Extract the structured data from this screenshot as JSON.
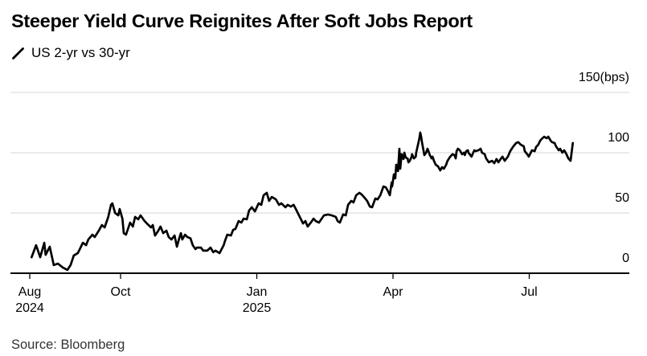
{
  "chart_data": {
    "type": "line",
    "title": "Steeper Yield Curve Reignites After Soft Jobs Report",
    "legend": {
      "label": "US 2-yr vs 30-yr"
    },
    "source": "Source: Bloomberg",
    "colors": {
      "line": "#000000",
      "grid": "#d6d6d6",
      "axis": "#000000",
      "background": "#ffffff",
      "text": "#000000"
    },
    "y_axis": {
      "ticks": [
        0,
        50,
        100,
        150
      ],
      "unit": "(bps)",
      "range": [
        0,
        150
      ],
      "grid": true,
      "side": "right"
    },
    "x_axis": {
      "unit": "months since Aug 2024",
      "ticks": [
        {
          "label": "Aug",
          "year": "2024",
          "t": 0
        },
        {
          "label": "Oct",
          "t": 2
        },
        {
          "label": "Jan",
          "year": "2025",
          "t": 5
        },
        {
          "label": "Apr",
          "t": 8
        },
        {
          "label": "Jul",
          "t": 11
        }
      ]
    },
    "series": [
      {
        "name": "US 2-yr vs 30-yr spread",
        "color": "#000000",
        "value_unit": "bps",
        "points": [
          [
            0.04,
            13.3
          ],
          [
            0.14,
            23.3
          ],
          [
            0.23,
            13.3
          ],
          [
            0.32,
            25.3
          ],
          [
            0.35,
            15.3
          ],
          [
            0.44,
            22
          ],
          [
            0.53,
            6.7
          ],
          [
            0.62,
            8
          ],
          [
            0.73,
            4.7
          ],
          [
            0.83,
            2.7
          ],
          [
            0.9,
            6.7
          ],
          [
            0.97,
            14.7
          ],
          [
            1.06,
            16.7
          ],
          [
            1.17,
            25.3
          ],
          [
            1.24,
            23.3
          ],
          [
            1.29,
            28
          ],
          [
            1.38,
            32
          ],
          [
            1.43,
            30
          ],
          [
            1.52,
            35.3
          ],
          [
            1.59,
            40
          ],
          [
            1.65,
            38
          ],
          [
            1.73,
            46.7
          ],
          [
            1.79,
            56.7
          ],
          [
            1.82,
            58
          ],
          [
            1.88,
            50
          ],
          [
            1.95,
            48
          ],
          [
            1.98,
            53.3
          ],
          [
            2.04,
            45.3
          ],
          [
            2.07,
            33.3
          ],
          [
            2.12,
            32
          ],
          [
            2.21,
            42
          ],
          [
            2.27,
            38.7
          ],
          [
            2.32,
            46.7
          ],
          [
            2.39,
            44.7
          ],
          [
            2.44,
            48
          ],
          [
            2.53,
            43.3
          ],
          [
            2.58,
            41.3
          ],
          [
            2.67,
            38
          ],
          [
            2.71,
            40
          ],
          [
            2.76,
            31.3
          ],
          [
            2.83,
            35.3
          ],
          [
            2.88,
            38.7
          ],
          [
            2.94,
            33.3
          ],
          [
            3.01,
            35.3
          ],
          [
            3.06,
            30
          ],
          [
            3.12,
            28
          ],
          [
            3.19,
            31.3
          ],
          [
            3.24,
            22
          ],
          [
            3.29,
            28.7
          ],
          [
            3.33,
            33.3
          ],
          [
            3.36,
            28
          ],
          [
            3.42,
            32
          ],
          [
            3.47,
            30
          ],
          [
            3.54,
            29
          ],
          [
            3.59,
            23.3
          ],
          [
            3.65,
            20
          ],
          [
            3.68,
            21.3
          ],
          [
            3.77,
            21.3
          ],
          [
            3.82,
            18.7
          ],
          [
            3.91,
            18.7
          ],
          [
            3.98,
            21.3
          ],
          [
            4.04,
            17.5
          ],
          [
            4.09,
            18.7
          ],
          [
            4.18,
            16.7
          ],
          [
            4.27,
            23.3
          ],
          [
            4.3,
            26.7
          ],
          [
            4.35,
            32
          ],
          [
            4.43,
            31.3
          ],
          [
            4.48,
            36
          ],
          [
            4.53,
            36.7
          ],
          [
            4.6,
            43.3
          ],
          [
            4.66,
            42
          ],
          [
            4.71,
            45.3
          ],
          [
            4.78,
            44.7
          ],
          [
            4.83,
            52
          ],
          [
            4.89,
            54.7
          ],
          [
            4.96,
            51.3
          ],
          [
            5.04,
            58
          ],
          [
            5.1,
            56.7
          ],
          [
            5.15,
            64.7
          ],
          [
            5.22,
            66.7
          ],
          [
            5.27,
            60
          ],
          [
            5.33,
            63.3
          ],
          [
            5.42,
            61.3
          ],
          [
            5.49,
            56.7
          ],
          [
            5.54,
            58
          ],
          [
            5.63,
            54.7
          ],
          [
            5.68,
            56.7
          ],
          [
            5.75,
            55.3
          ],
          [
            5.81,
            56.7
          ],
          [
            5.86,
            53.3
          ],
          [
            5.93,
            48
          ],
          [
            6.02,
            41.3
          ],
          [
            6.07,
            43.3
          ],
          [
            6.12,
            38.7
          ],
          [
            6.19,
            42
          ],
          [
            6.25,
            45.3
          ],
          [
            6.3,
            43.3
          ],
          [
            6.37,
            42
          ],
          [
            6.42,
            44.7
          ],
          [
            6.48,
            48
          ],
          [
            6.57,
            48.7
          ],
          [
            6.65,
            48
          ],
          [
            6.74,
            46.7
          ],
          [
            6.78,
            43.3
          ],
          [
            6.83,
            42
          ],
          [
            6.9,
            48.7
          ],
          [
            6.96,
            48
          ],
          [
            7.01,
            56.7
          ],
          [
            7.08,
            60
          ],
          [
            7.13,
            58.7
          ],
          [
            7.19,
            64.7
          ],
          [
            7.26,
            66.7
          ],
          [
            7.31,
            65.3
          ],
          [
            7.36,
            63.3
          ],
          [
            7.43,
            60
          ],
          [
            7.49,
            55.3
          ],
          [
            7.54,
            54.7
          ],
          [
            7.61,
            62
          ],
          [
            7.66,
            61.3
          ],
          [
            7.72,
            64.7
          ],
          [
            7.79,
            72
          ],
          [
            7.84,
            71.3
          ],
          [
            7.89,
            68
          ],
          [
            7.93,
            64.7
          ],
          [
            7.97,
            75.3
          ],
          [
            7.98,
            72
          ],
          [
            8.02,
            82
          ],
          [
            8.05,
            78.7
          ],
          [
            8.07,
            90
          ],
          [
            8.11,
            84.7
          ],
          [
            8.14,
            103.3
          ],
          [
            8.16,
            86.7
          ],
          [
            8.19,
            98.7
          ],
          [
            8.23,
            94.7
          ],
          [
            8.25,
            100
          ],
          [
            8.28,
            96
          ],
          [
            8.32,
            95.3
          ],
          [
            8.34,
            92
          ],
          [
            8.37,
            93.3
          ],
          [
            8.41,
            96.7
          ],
          [
            8.42,
            98.7
          ],
          [
            8.46,
            95.3
          ],
          [
            8.5,
            96.7
          ],
          [
            8.51,
            100
          ],
          [
            8.55,
            106.7
          ],
          [
            8.58,
            112
          ],
          [
            8.6,
            116.7
          ],
          [
            8.62,
            113.3
          ],
          [
            8.64,
            108
          ],
          [
            8.67,
            102
          ],
          [
            8.69,
            98
          ],
          [
            8.73,
            100
          ],
          [
            8.76,
            103.3
          ],
          [
            8.78,
            101.3
          ],
          [
            8.81,
            98
          ],
          [
            8.85,
            95.3
          ],
          [
            8.87,
            96.7
          ],
          [
            8.9,
            93.3
          ],
          [
            8.94,
            90
          ],
          [
            8.99,
            88.7
          ],
          [
            9.04,
            85.3
          ],
          [
            9.08,
            88
          ],
          [
            9.12,
            86.7
          ],
          [
            9.17,
            90
          ],
          [
            9.2,
            93.3
          ],
          [
            9.26,
            96.7
          ],
          [
            9.31,
            98.7
          ],
          [
            9.35,
            98
          ],
          [
            9.38,
            95.3
          ],
          [
            9.4,
            101.3
          ],
          [
            9.43,
            103.3
          ],
          [
            9.47,
            102
          ],
          [
            9.52,
            98.7
          ],
          [
            9.56,
            100
          ],
          [
            9.58,
            98
          ],
          [
            9.61,
            101.3
          ],
          [
            9.65,
            102
          ],
          [
            9.66,
            100
          ],
          [
            9.73,
            96.7
          ],
          [
            9.79,
            102
          ],
          [
            9.82,
            101.3
          ],
          [
            9.88,
            102
          ],
          [
            9.93,
            103.3
          ],
          [
            9.96,
            100
          ],
          [
            10.02,
            98.7
          ],
          [
            10.05,
            95.3
          ],
          [
            10.11,
            92
          ],
          [
            10.18,
            93.3
          ],
          [
            10.23,
            91.3
          ],
          [
            10.28,
            94.7
          ],
          [
            10.32,
            92
          ],
          [
            10.37,
            94.7
          ],
          [
            10.41,
            96.7
          ],
          [
            10.46,
            93.3
          ],
          [
            10.53,
            96.7
          ],
          [
            10.58,
            101.3
          ],
          [
            10.64,
            104.7
          ],
          [
            10.71,
            108
          ],
          [
            10.76,
            108.7
          ],
          [
            10.81,
            106.7
          ],
          [
            10.88,
            105.3
          ],
          [
            10.9,
            101.3
          ],
          [
            10.97,
            98
          ],
          [
            10.99,
            96.7
          ],
          [
            11.06,
            102
          ],
          [
            11.12,
            101.3
          ],
          [
            11.15,
            104.7
          ],
          [
            11.2,
            106.7
          ],
          [
            11.24,
            110
          ],
          [
            11.29,
            112
          ],
          [
            11.33,
            113.3
          ],
          [
            11.38,
            112
          ],
          [
            11.42,
            113.3
          ],
          [
            11.47,
            110
          ],
          [
            11.5,
            108.7
          ],
          [
            11.56,
            108
          ],
          [
            11.59,
            105.3
          ],
          [
            11.65,
            102
          ],
          [
            11.68,
            103.3
          ],
          [
            11.73,
            100
          ],
          [
            11.77,
            102
          ],
          [
            11.82,
            98.7
          ],
          [
            11.86,
            95.3
          ],
          [
            11.91,
            93.3
          ],
          [
            11.96,
            108
          ]
        ]
      }
    ]
  }
}
